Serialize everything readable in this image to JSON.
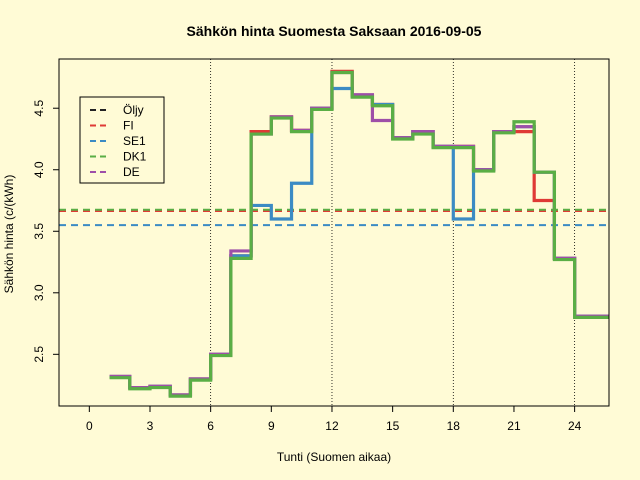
{
  "chart_data": {
    "type": "line",
    "title": "Sähkön hinta Suomesta Saksaan 2016-09-05",
    "xlabel": "Tunti (Suomen aikaa)",
    "ylabel": "Sähkön hinta (c/(kWh)",
    "xlim": [
      -1.5,
      25.7
    ],
    "ylim": [
      2.08,
      4.9
    ],
    "x_ticks": [
      0,
      3,
      6,
      9,
      12,
      15,
      18,
      21,
      24
    ],
    "y_ticks": [
      2.5,
      3.0,
      3.5,
      4.0,
      4.5
    ],
    "y_tick_labels": [
      "2.5",
      "3.0",
      "3.5",
      "4.0",
      "4.5"
    ],
    "vlines": [
      6,
      12,
      18,
      24
    ],
    "hours": [
      1,
      2,
      3,
      4,
      5,
      6,
      7,
      8,
      9,
      10,
      11,
      12,
      13,
      14,
      15,
      16,
      17,
      18,
      19,
      20,
      21,
      22,
      23,
      24,
      25
    ],
    "series": [
      {
        "name": "FI",
        "color": "#df3a35",
        "style": "step",
        "values": [
          2.32,
          2.23,
          2.24,
          2.17,
          2.3,
          2.5,
          3.3,
          4.31,
          4.43,
          4.32,
          4.5,
          4.8,
          4.6,
          4.53,
          4.26,
          4.31,
          4.19,
          4.19,
          4.0,
          4.31,
          4.31,
          3.75,
          3.28,
          2.81,
          2.81
        ]
      },
      {
        "name": "SE1",
        "color": "#3b8bc4",
        "style": "step",
        "values": [
          2.32,
          2.23,
          2.24,
          2.17,
          2.3,
          2.5,
          3.3,
          3.71,
          3.6,
          3.89,
          4.5,
          4.66,
          4.6,
          4.53,
          4.26,
          4.31,
          4.19,
          3.6,
          4.0,
          4.31,
          4.35,
          3.98,
          3.28,
          2.81,
          2.81
        ]
      },
      {
        "name": "DE",
        "color": "#9e4fa8",
        "style": "step",
        "values": [
          2.32,
          2.23,
          2.24,
          2.17,
          2.3,
          2.5,
          3.34,
          4.29,
          4.43,
          4.32,
          4.5,
          4.79,
          4.61,
          4.4,
          4.26,
          4.31,
          4.19,
          4.19,
          4.0,
          4.31,
          4.35,
          3.98,
          3.28,
          2.81,
          2.81
        ]
      },
      {
        "name": "DK1",
        "color": "#5aae45",
        "style": "step",
        "values": [
          2.31,
          2.22,
          2.23,
          2.16,
          2.29,
          2.49,
          3.28,
          4.29,
          4.42,
          4.31,
          4.49,
          4.79,
          4.59,
          4.52,
          4.25,
          4.29,
          4.18,
          4.18,
          3.99,
          4.3,
          4.39,
          3.98,
          3.27,
          2.8,
          2.8
        ]
      },
      {
        "name": "Öljy",
        "color": "#222222",
        "style": "hline",
        "value": 3.67
      },
      {
        "name": "FI",
        "color": "#df3a35",
        "style": "hline",
        "value": 3.665
      },
      {
        "name": "DK1",
        "color": "#5aae45",
        "style": "hline",
        "value": 3.675
      },
      {
        "name": "SE1",
        "color": "#3b8bc4",
        "style": "hline",
        "value": 3.55
      }
    ],
    "legend": {
      "position": "top-left",
      "entries": [
        {
          "label": "Öljy",
          "color": "#222222"
        },
        {
          "label": "FI",
          "color": "#df3a35"
        },
        {
          "label": "SE1",
          "color": "#3b8bc4"
        },
        {
          "label": "DK1",
          "color": "#5aae45"
        },
        {
          "label": "DE",
          "color": "#9e4fa8"
        }
      ]
    },
    "grid": false
  }
}
